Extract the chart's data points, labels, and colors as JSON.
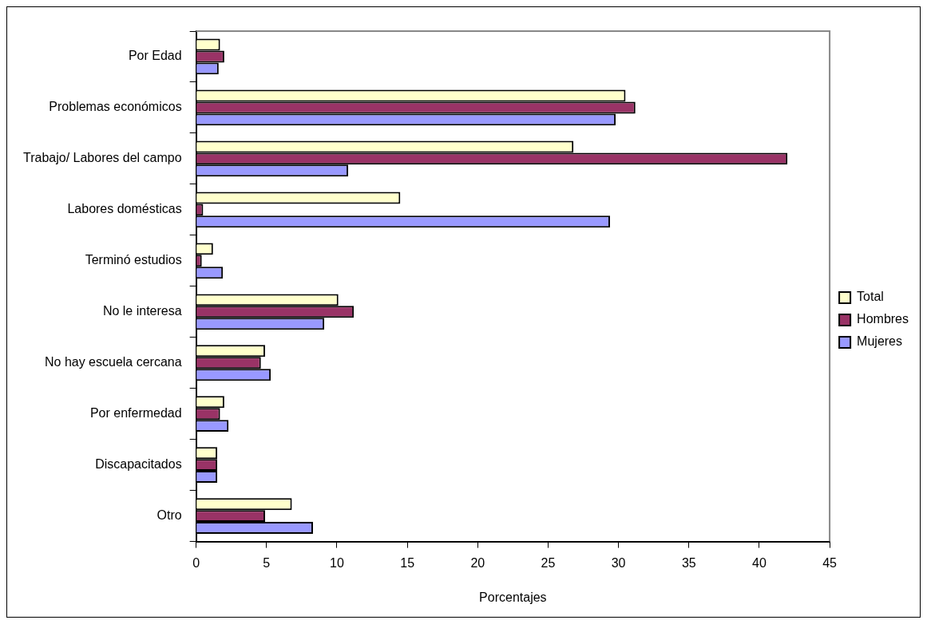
{
  "chart_data": {
    "type": "bar",
    "orientation": "horizontal",
    "xlabel": "Porcentajes",
    "categories": [
      "Por Edad",
      "Problemas económicos",
      "Trabajo/ Labores del campo",
      "Labores domésticas",
      "Terminó estudios",
      "No le interesa",
      "No hay escuela cercana",
      "Por enfermedad",
      "Discapacitados",
      "Otro"
    ],
    "series": [
      {
        "name": "Total",
        "color": "#ffffcc",
        "values": [
          1.7,
          30.5,
          26.8,
          14.5,
          1.2,
          10.1,
          4.9,
          2.0,
          1.5,
          6.8
        ]
      },
      {
        "name": "Hombres",
        "color": "#993366",
        "values": [
          2.0,
          31.2,
          42.0,
          0.5,
          0.4,
          11.2,
          4.6,
          1.7,
          1.5,
          4.9
        ]
      },
      {
        "name": "Mujeres",
        "color": "#9999ff",
        "values": [
          1.6,
          29.8,
          10.8,
          29.4,
          1.9,
          9.1,
          5.3,
          2.3,
          1.5,
          8.3
        ]
      }
    ],
    "xlim": [
      0,
      45
    ],
    "xticks": [
      0,
      5,
      10,
      15,
      20,
      25,
      30,
      35,
      40,
      45
    ],
    "grid": false,
    "legend": "right"
  }
}
